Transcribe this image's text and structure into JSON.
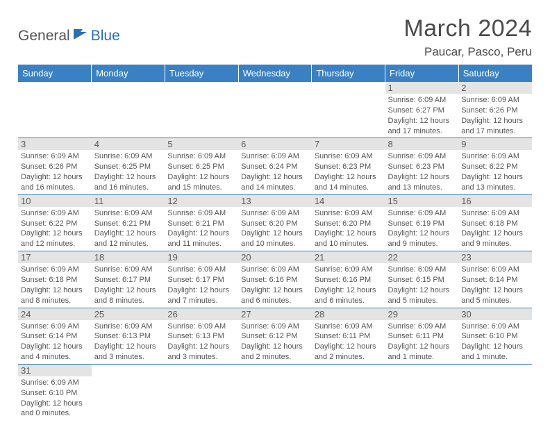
{
  "logo": {
    "part1": "General",
    "part2": "Blue"
  },
  "title": "March 2024",
  "location": "Paucar, Pasco, Peru",
  "colors": {
    "header_bg": "#3a81c4",
    "header_text": "#ffffff",
    "day_strip_bg": "#e4e4e4",
    "border": "#3a81c4",
    "text": "#4a4a4a",
    "logo_blue": "#2a6db5"
  },
  "weekdays": [
    "Sunday",
    "Monday",
    "Tuesday",
    "Wednesday",
    "Thursday",
    "Friday",
    "Saturday"
  ],
  "weeks": [
    [
      null,
      null,
      null,
      null,
      null,
      {
        "n": "1",
        "sr": "Sunrise: 6:09 AM",
        "ss": "Sunset: 6:27 PM",
        "d1": "Daylight: 12 hours",
        "d2": "and 17 minutes."
      },
      {
        "n": "2",
        "sr": "Sunrise: 6:09 AM",
        "ss": "Sunset: 6:26 PM",
        "d1": "Daylight: 12 hours",
        "d2": "and 17 minutes."
      }
    ],
    [
      {
        "n": "3",
        "sr": "Sunrise: 6:09 AM",
        "ss": "Sunset: 6:26 PM",
        "d1": "Daylight: 12 hours",
        "d2": "and 16 minutes."
      },
      {
        "n": "4",
        "sr": "Sunrise: 6:09 AM",
        "ss": "Sunset: 6:25 PM",
        "d1": "Daylight: 12 hours",
        "d2": "and 16 minutes."
      },
      {
        "n": "5",
        "sr": "Sunrise: 6:09 AM",
        "ss": "Sunset: 6:25 PM",
        "d1": "Daylight: 12 hours",
        "d2": "and 15 minutes."
      },
      {
        "n": "6",
        "sr": "Sunrise: 6:09 AM",
        "ss": "Sunset: 6:24 PM",
        "d1": "Daylight: 12 hours",
        "d2": "and 14 minutes."
      },
      {
        "n": "7",
        "sr": "Sunrise: 6:09 AM",
        "ss": "Sunset: 6:23 PM",
        "d1": "Daylight: 12 hours",
        "d2": "and 14 minutes."
      },
      {
        "n": "8",
        "sr": "Sunrise: 6:09 AM",
        "ss": "Sunset: 6:23 PM",
        "d1": "Daylight: 12 hours",
        "d2": "and 13 minutes."
      },
      {
        "n": "9",
        "sr": "Sunrise: 6:09 AM",
        "ss": "Sunset: 6:22 PM",
        "d1": "Daylight: 12 hours",
        "d2": "and 13 minutes."
      }
    ],
    [
      {
        "n": "10",
        "sr": "Sunrise: 6:09 AM",
        "ss": "Sunset: 6:22 PM",
        "d1": "Daylight: 12 hours",
        "d2": "and 12 minutes."
      },
      {
        "n": "11",
        "sr": "Sunrise: 6:09 AM",
        "ss": "Sunset: 6:21 PM",
        "d1": "Daylight: 12 hours",
        "d2": "and 12 minutes."
      },
      {
        "n": "12",
        "sr": "Sunrise: 6:09 AM",
        "ss": "Sunset: 6:21 PM",
        "d1": "Daylight: 12 hours",
        "d2": "and 11 minutes."
      },
      {
        "n": "13",
        "sr": "Sunrise: 6:09 AM",
        "ss": "Sunset: 6:20 PM",
        "d1": "Daylight: 12 hours",
        "d2": "and 10 minutes."
      },
      {
        "n": "14",
        "sr": "Sunrise: 6:09 AM",
        "ss": "Sunset: 6:20 PM",
        "d1": "Daylight: 12 hours",
        "d2": "and 10 minutes."
      },
      {
        "n": "15",
        "sr": "Sunrise: 6:09 AM",
        "ss": "Sunset: 6:19 PM",
        "d1": "Daylight: 12 hours",
        "d2": "and 9 minutes."
      },
      {
        "n": "16",
        "sr": "Sunrise: 6:09 AM",
        "ss": "Sunset: 6:18 PM",
        "d1": "Daylight: 12 hours",
        "d2": "and 9 minutes."
      }
    ],
    [
      {
        "n": "17",
        "sr": "Sunrise: 6:09 AM",
        "ss": "Sunset: 6:18 PM",
        "d1": "Daylight: 12 hours",
        "d2": "and 8 minutes."
      },
      {
        "n": "18",
        "sr": "Sunrise: 6:09 AM",
        "ss": "Sunset: 6:17 PM",
        "d1": "Daylight: 12 hours",
        "d2": "and 8 minutes."
      },
      {
        "n": "19",
        "sr": "Sunrise: 6:09 AM",
        "ss": "Sunset: 6:17 PM",
        "d1": "Daylight: 12 hours",
        "d2": "and 7 minutes."
      },
      {
        "n": "20",
        "sr": "Sunrise: 6:09 AM",
        "ss": "Sunset: 6:16 PM",
        "d1": "Daylight: 12 hours",
        "d2": "and 6 minutes."
      },
      {
        "n": "21",
        "sr": "Sunrise: 6:09 AM",
        "ss": "Sunset: 6:16 PM",
        "d1": "Daylight: 12 hours",
        "d2": "and 6 minutes."
      },
      {
        "n": "22",
        "sr": "Sunrise: 6:09 AM",
        "ss": "Sunset: 6:15 PM",
        "d1": "Daylight: 12 hours",
        "d2": "and 5 minutes."
      },
      {
        "n": "23",
        "sr": "Sunrise: 6:09 AM",
        "ss": "Sunset: 6:14 PM",
        "d1": "Daylight: 12 hours",
        "d2": "and 5 minutes."
      }
    ],
    [
      {
        "n": "24",
        "sr": "Sunrise: 6:09 AM",
        "ss": "Sunset: 6:14 PM",
        "d1": "Daylight: 12 hours",
        "d2": "and 4 minutes."
      },
      {
        "n": "25",
        "sr": "Sunrise: 6:09 AM",
        "ss": "Sunset: 6:13 PM",
        "d1": "Daylight: 12 hours",
        "d2": "and 3 minutes."
      },
      {
        "n": "26",
        "sr": "Sunrise: 6:09 AM",
        "ss": "Sunset: 6:13 PM",
        "d1": "Daylight: 12 hours",
        "d2": "and 3 minutes."
      },
      {
        "n": "27",
        "sr": "Sunrise: 6:09 AM",
        "ss": "Sunset: 6:12 PM",
        "d1": "Daylight: 12 hours",
        "d2": "and 2 minutes."
      },
      {
        "n": "28",
        "sr": "Sunrise: 6:09 AM",
        "ss": "Sunset: 6:11 PM",
        "d1": "Daylight: 12 hours",
        "d2": "and 2 minutes."
      },
      {
        "n": "29",
        "sr": "Sunrise: 6:09 AM",
        "ss": "Sunset: 6:11 PM",
        "d1": "Daylight: 12 hours",
        "d2": "and 1 minute."
      },
      {
        "n": "30",
        "sr": "Sunrise: 6:09 AM",
        "ss": "Sunset: 6:10 PM",
        "d1": "Daylight: 12 hours",
        "d2": "and 1 minute."
      }
    ],
    [
      {
        "n": "31",
        "sr": "Sunrise: 6:09 AM",
        "ss": "Sunset: 6:10 PM",
        "d1": "Daylight: 12 hours",
        "d2": "and 0 minutes."
      },
      null,
      null,
      null,
      null,
      null,
      null
    ]
  ]
}
